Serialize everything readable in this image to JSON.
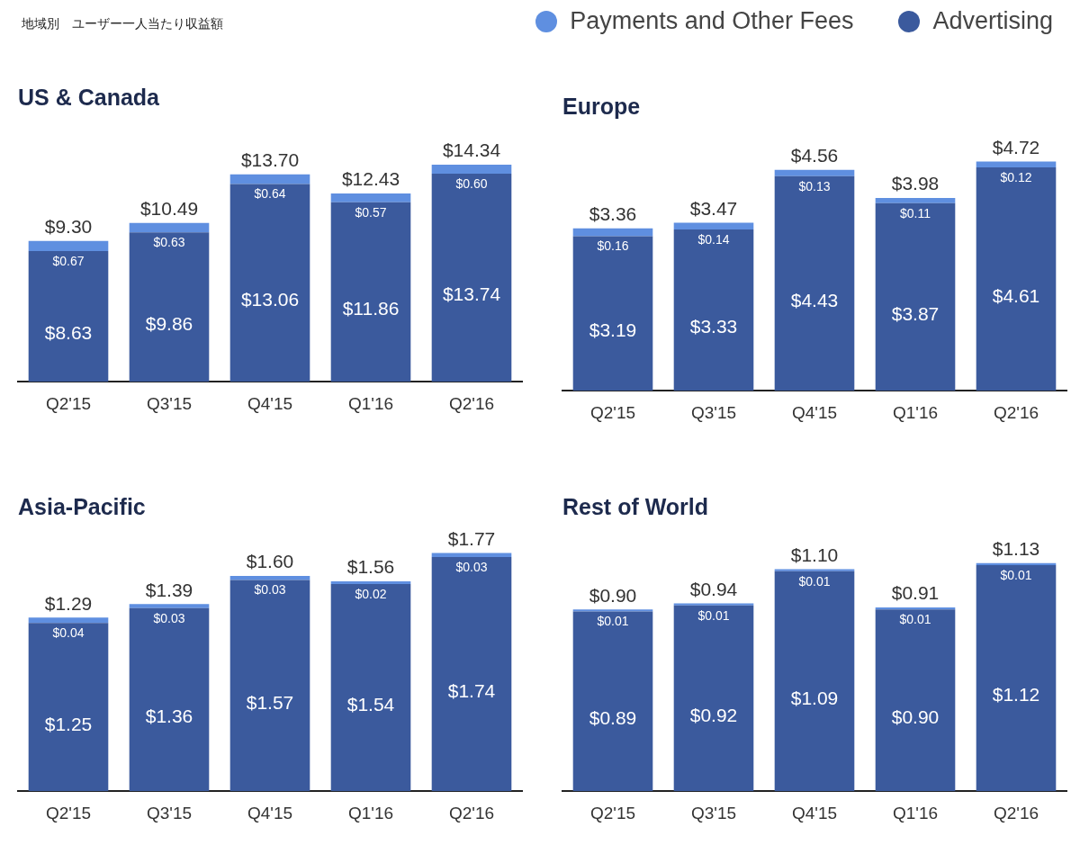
{
  "chart_data": [
    {
      "type": "bar",
      "title": "US & Canada",
      "annotations": [
        "地域別　ユーザー一人当たり収益額"
      ],
      "legend": "top right",
      "stacked": true,
      "tick_labels": "x",
      "categories": [
        "Q2'15",
        "Q3'15",
        "Q4'15",
        "Q1'16",
        "Q2'16"
      ],
      "series": [
        {
          "name": "Advertising",
          "color": "#3b5a9d",
          "values": [
            8.63,
            9.86,
            13.06,
            11.86,
            13.74
          ],
          "value_labels": [
            "$8.63",
            "$9.86",
            "$13.06",
            "$11.86",
            "$13.74"
          ]
        },
        {
          "name": "Payments and Other Fees",
          "color": "#5f8fe0",
          "values": [
            0.67,
            0.63,
            0.64,
            0.57,
            0.6
          ],
          "value_labels": [
            "$0.67",
            "$0.63",
            "$0.64",
            "$0.57",
            "$0.60"
          ]
        }
      ],
      "totals": [
        "$9.30",
        "$10.49",
        "$13.70",
        "$12.43",
        "$14.34"
      ]
    },
    {
      "type": "bar",
      "title": "Europe",
      "stacked": true,
      "tick_labels": "x",
      "categories": [
        "Q2'15",
        "Q3'15",
        "Q4'15",
        "Q1'16",
        "Q2'16"
      ],
      "series": [
        {
          "color": "#3b5a9d",
          "values": [
            3.19,
            3.33,
            4.43,
            3.87,
            4.61
          ],
          "value_labels": [
            "$3.19",
            "$3.33",
            "$4.43",
            "$3.87",
            "$4.61"
          ]
        },
        {
          "color": "#5f8fe0",
          "values": [
            0.16,
            0.14,
            0.13,
            0.11,
            0.12
          ],
          "value_labels": [
            "$0.16",
            "$0.14",
            "$0.13",
            "$0.11",
            "$0.12"
          ]
        }
      ],
      "totals": [
        "$3.36",
        "$3.47",
        "$4.56",
        "$3.98",
        "$4.72"
      ]
    },
    {
      "type": "bar",
      "title": "Asia-Pacific",
      "stacked": true,
      "tick_labels": "x",
      "categories": [
        "Q2'15",
        "Q3'15",
        "Q4'15",
        "Q1'16",
        "Q2'16"
      ],
      "series": [
        {
          "color": "#3b5a9d",
          "values": [
            1.25,
            1.36,
            1.57,
            1.54,
            1.74
          ],
          "value_labels": [
            "$1.25",
            "$1.36",
            "$1.57",
            "$1.54",
            "$1.74"
          ]
        },
        {
          "color": "#5f8fe0",
          "values": [
            0.04,
            0.03,
            0.03,
            0.02,
            0.03
          ],
          "value_labels": [
            "$0.04",
            "$0.03",
            "$0.03",
            "$0.02",
            "$0.03"
          ]
        }
      ],
      "totals": [
        "$1.29",
        "$1.39",
        "$1.60",
        "$1.56",
        "$1.77"
      ]
    },
    {
      "type": "bar",
      "title": "Rest of World",
      "stacked": true,
      "tick_labels": "x",
      "categories": [
        "Q2'15",
        "Q3'15",
        "Q4'15",
        "Q1'16",
        "Q2'16"
      ],
      "series": [
        {
          "color": "#3b5a9d",
          "values": [
            0.89,
            0.92,
            1.09,
            0.9,
            1.12
          ],
          "value_labels": [
            "$0.89",
            "$0.92",
            "$1.09",
            "$0.90",
            "$1.12"
          ]
        },
        {
          "color": "#5f8fe0",
          "values": [
            0.01,
            0.01,
            0.01,
            0.01,
            0.01
          ],
          "value_labels": [
            "$0.01",
            "$0.01",
            "$0.01",
            "$0.01",
            "$0.01"
          ]
        }
      ],
      "totals": [
        "$0.90",
        "$0.94",
        "$1.10",
        "$0.91",
        "$1.13"
      ]
    }
  ]
}
